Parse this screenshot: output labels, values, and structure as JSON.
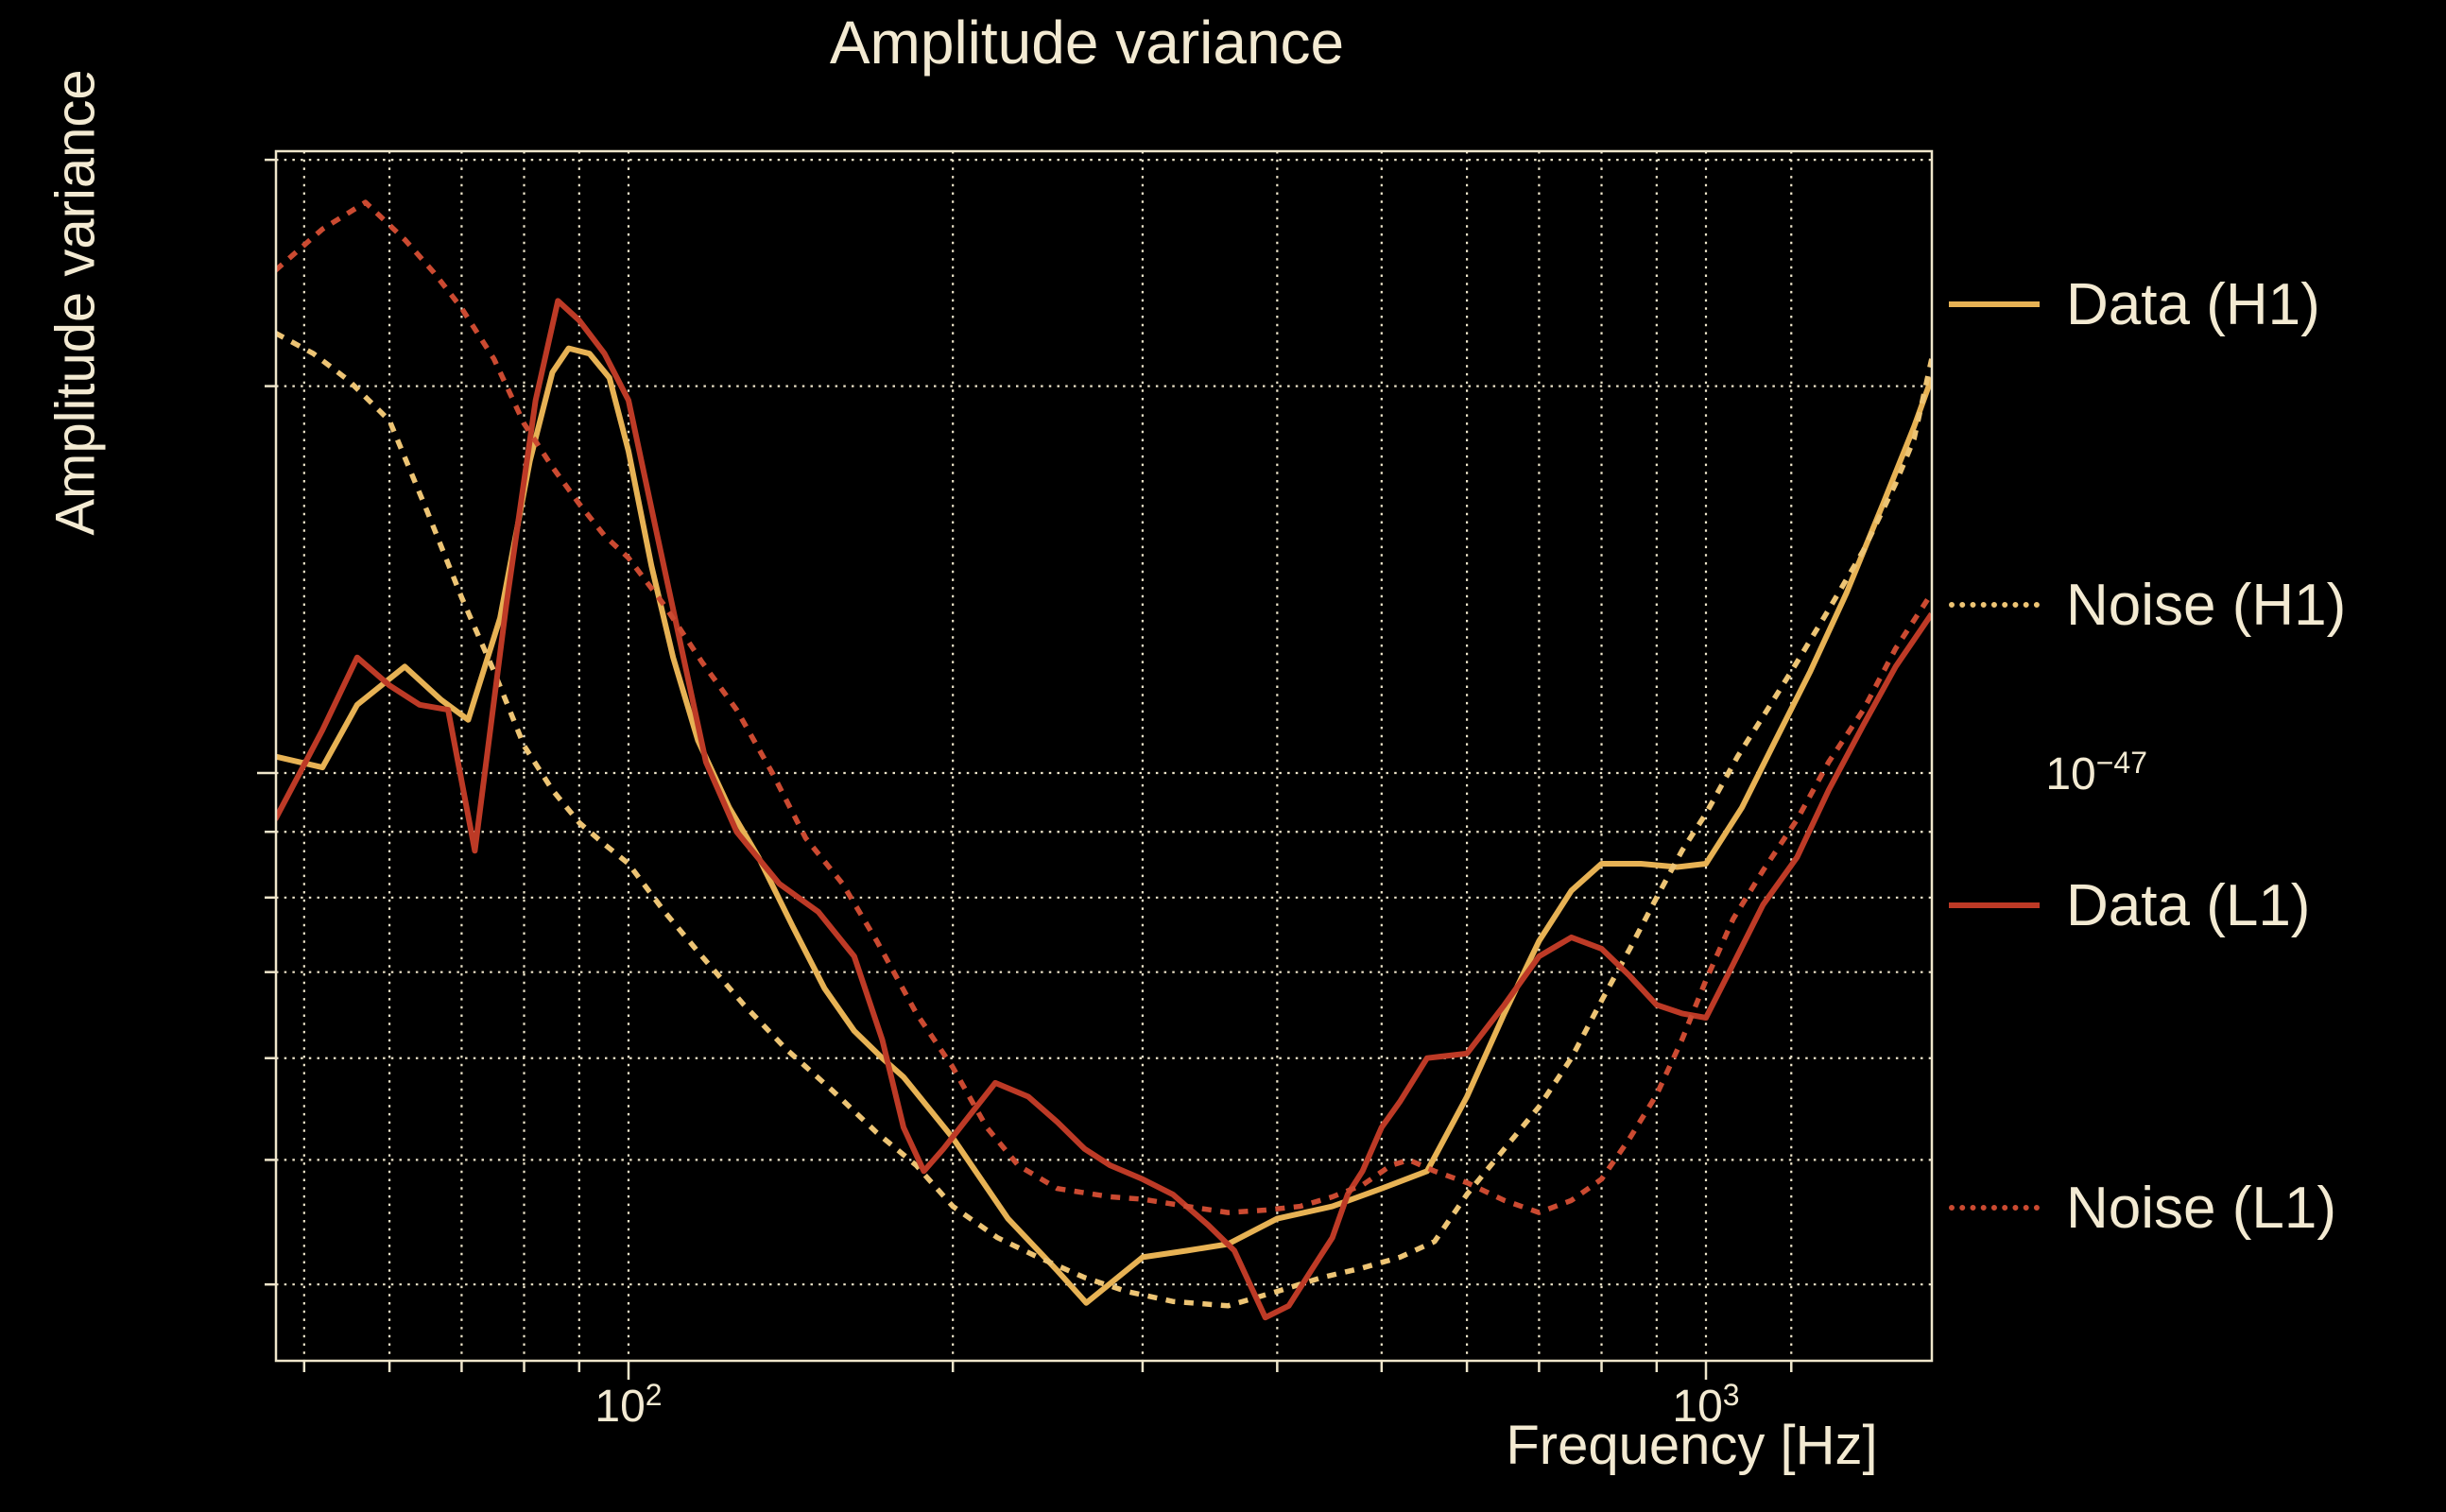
{
  "title": "Amplitude variance",
  "axes": {
    "xlabel": "Frequency [Hz]",
    "ylabel": "Amplitude variance",
    "x_ticks": [
      {
        "base": "10",
        "exp": "2"
      },
      {
        "base": "10",
        "exp": "3"
      }
    ],
    "y_ticks": [
      {
        "base": "10",
        "exp": "−47"
      }
    ]
  },
  "colors": {
    "background": "#000000",
    "text": "#F3EAD2",
    "grid": "#EFE6CB",
    "data_h1": "#E7B254",
    "noise_h1": "#EDC474",
    "data_l1": "#BD3A26",
    "noise_l1": "#CB4A31"
  },
  "legend": [
    {
      "label": "Data (H1)",
      "style": "solid",
      "color": "#E7B254"
    },
    {
      "label": "Noise (H1)",
      "style": "dotted",
      "color": "#EDC474"
    },
    {
      "label": "Data (L1)",
      "style": "solid",
      "color": "#BD3A26"
    },
    {
      "label": "Noise (L1)",
      "style": "dotted",
      "color": "#CB4A31"
    }
  ],
  "chart_data": {
    "type": "line",
    "title": "Amplitude variance",
    "xlabel": "Frequency [Hz]",
    "ylabel": "Amplitude variance",
    "x_scale": "log",
    "y_scale": "log",
    "xlim": [
      47,
      1620
    ],
    "ylim": [
      3.5e-48,
      3.1e-47
    ],
    "grid": "dotted gridlines on both axes, major and minor",
    "legend_position": "outside right",
    "x_gridlines_hz": [
      50,
      60,
      70,
      80,
      90,
      100,
      200,
      300,
      400,
      500,
      600,
      700,
      800,
      900,
      1000,
      1200
    ],
    "x_major_ticks_hz": [
      100,
      1000
    ],
    "y_gridlines": [
      3e-47,
      2e-47,
      1e-47,
      9e-48,
      8e-48,
      7e-48,
      6e-48,
      5e-48,
      4e-48
    ],
    "y_major_ticks": [
      1e-47
    ],
    "series": [
      {
        "name": "Data (H1)",
        "style": "solid",
        "color": "#E7B254",
        "points": [
          [
            47,
            1.03e-47
          ],
          [
            52,
            1.01e-47
          ],
          [
            56,
            1.13e-47
          ],
          [
            62,
            1.21e-47
          ],
          [
            67,
            1.14e-47
          ],
          [
            71,
            1.1e-47
          ],
          [
            76,
            1.32e-47
          ],
          [
            81,
            1.75e-47
          ],
          [
            85,
            2.05e-47
          ],
          [
            88,
            2.14e-47
          ],
          [
            92,
            2.12e-47
          ],
          [
            96,
            2.03e-47
          ],
          [
            100,
            1.78e-47
          ],
          [
            105,
            1.45e-47
          ],
          [
            110,
            1.23e-47
          ],
          [
            116,
            1.06e-47
          ],
          [
            124,
            9.4e-48
          ],
          [
            132,
            8.6e-48
          ],
          [
            142,
            7.6e-48
          ],
          [
            152,
            6.8e-48
          ],
          [
            162,
            6.3e-48
          ],
          [
            172,
            6e-48
          ],
          [
            180,
            5.8e-48
          ],
          [
            200,
            5.2e-48
          ],
          [
            225,
            4.5e-48
          ],
          [
            250,
            4.1e-48
          ],
          [
            266,
            3.87e-48
          ],
          [
            300,
            4.2e-48
          ],
          [
            330,
            4.25e-48
          ],
          [
            360,
            4.3e-48
          ],
          [
            400,
            4.5e-48
          ],
          [
            450,
            4.6e-48
          ],
          [
            500,
            4.75e-48
          ],
          [
            551,
            4.9e-48
          ],
          [
            600,
            5.6e-48
          ],
          [
            650,
            6.5e-48
          ],
          [
            700,
            7.4e-48
          ],
          [
            750,
            8.1e-48
          ],
          [
            800,
            8.5e-48
          ],
          [
            870,
            8.5e-48
          ],
          [
            940,
            8.45e-48
          ],
          [
            1000,
            8.5e-48
          ],
          [
            1080,
            9.4e-48
          ],
          [
            1160,
            1.06e-47
          ],
          [
            1250,
            1.2e-47
          ],
          [
            1350,
            1.38e-47
          ],
          [
            1460,
            1.62e-47
          ],
          [
            1560,
            1.86e-47
          ],
          [
            1620,
            2.03e-47
          ]
        ]
      },
      {
        "name": "Noise (H1)",
        "style": "dotted",
        "color": "#EDC474",
        "points": [
          [
            47,
            2.2e-47
          ],
          [
            51,
            2.12e-47
          ],
          [
            55,
            2.02e-47
          ],
          [
            60,
            1.88e-47
          ],
          [
            65,
            1.6e-47
          ],
          [
            70,
            1.37e-47
          ],
          [
            75,
            1.2e-47
          ],
          [
            80,
            1.05e-47
          ],
          [
            85,
            9.7e-48
          ],
          [
            90,
            9.15e-48
          ],
          [
            95,
            8.8e-48
          ],
          [
            100,
            8.5e-48
          ],
          [
            108,
            7.8e-48
          ],
          [
            117,
            7.2e-48
          ],
          [
            128,
            6.6e-48
          ],
          [
            140,
            6.1e-48
          ],
          [
            155,
            5.65e-48
          ],
          [
            170,
            5.25e-48
          ],
          [
            185,
            4.95e-48
          ],
          [
            200,
            4.6e-48
          ],
          [
            220,
            4.35e-48
          ],
          [
            240,
            4.2e-48
          ],
          [
            265,
            4.05e-48
          ],
          [
            290,
            3.95e-48
          ],
          [
            320,
            3.88e-48
          ],
          [
            360,
            3.85e-48
          ],
          [
            400,
            3.95e-48
          ],
          [
            440,
            4.05e-48
          ],
          [
            480,
            4.12e-48
          ],
          [
            520,
            4.2e-48
          ],
          [
            560,
            4.32e-48
          ],
          [
            600,
            4.7e-48
          ],
          [
            650,
            5.1e-48
          ],
          [
            700,
            5.5e-48
          ],
          [
            750,
            6e-48
          ],
          [
            800,
            6.65e-48
          ],
          [
            850,
            7.3e-48
          ],
          [
            900,
            8e-48
          ],
          [
            950,
            8.7e-48
          ],
          [
            1000,
            9.3e-48
          ],
          [
            1070,
            1.03e-47
          ],
          [
            1140,
            1.12e-47
          ],
          [
            1215,
            1.22e-47
          ],
          [
            1300,
            1.34e-47
          ],
          [
            1400,
            1.49e-47
          ],
          [
            1500,
            1.68e-47
          ],
          [
            1560,
            1.82e-47
          ],
          [
            1620,
            2.1e-47
          ]
        ]
      },
      {
        "name": "Data (L1)",
        "style": "solid",
        "color": "#BD3A26",
        "points": [
          [
            47,
            9.2e-48
          ],
          [
            52,
            1.08e-47
          ],
          [
            56,
            1.23e-47
          ],
          [
            60,
            1.17e-47
          ],
          [
            64,
            1.13e-47
          ],
          [
            68,
            1.12e-47
          ],
          [
            72,
            8.7e-48
          ],
          [
            77,
            1.35e-47
          ],
          [
            82,
            1.95e-47
          ],
          [
            86,
            2.33e-47
          ],
          [
            90,
            2.25e-47
          ],
          [
            95,
            2.12e-47
          ],
          [
            100,
            1.95e-47
          ],
          [
            106,
            1.55e-47
          ],
          [
            112,
            1.25e-47
          ],
          [
            118,
            1.02e-47
          ],
          [
            126,
            9e-48
          ],
          [
            138,
            8.2e-48
          ],
          [
            150,
            7.8e-48
          ],
          [
            162,
            7.2e-48
          ],
          [
            172,
            6.2e-48
          ],
          [
            180,
            5.3e-48
          ],
          [
            188,
            4.9e-48
          ],
          [
            196,
            5.1e-48
          ],
          [
            205,
            5.35e-48
          ],
          [
            219,
            5.74e-48
          ],
          [
            235,
            5.6e-48
          ],
          [
            250,
            5.35e-48
          ],
          [
            265,
            5.1e-48
          ],
          [
            280,
            4.95e-48
          ],
          [
            300,
            4.83e-48
          ],
          [
            320,
            4.7e-48
          ],
          [
            345,
            4.45e-48
          ],
          [
            365,
            4.25e-48
          ],
          [
            390,
            3.77e-48
          ],
          [
            410,
            3.85e-48
          ],
          [
            430,
            4.1e-48
          ],
          [
            450,
            4.35e-48
          ],
          [
            465,
            4.7e-48
          ],
          [
            480,
            4.9e-48
          ],
          [
            500,
            5.3e-48
          ],
          [
            520,
            5.55e-48
          ],
          [
            551,
            6e-48
          ],
          [
            600,
            6.05e-48
          ],
          [
            650,
            6.6e-48
          ],
          [
            700,
            7.2e-48
          ],
          [
            750,
            7.45e-48
          ],
          [
            800,
            7.3e-48
          ],
          [
            850,
            6.95e-48
          ],
          [
            900,
            6.6e-48
          ],
          [
            950,
            6.5e-48
          ],
          [
            1000,
            6.45e-48
          ],
          [
            1060,
            7.1e-48
          ],
          [
            1130,
            7.9e-48
          ],
          [
            1215,
            8.6e-48
          ],
          [
            1300,
            9.7e-48
          ],
          [
            1400,
            1.09e-47
          ],
          [
            1500,
            1.21e-47
          ],
          [
            1620,
            1.33e-47
          ]
        ]
      },
      {
        "name": "Noise (L1)",
        "style": "dotted",
        "color": "#CB4A31",
        "points": [
          [
            47,
            2.46e-47
          ],
          [
            52,
            2.65e-47
          ],
          [
            57,
            2.78e-47
          ],
          [
            62,
            2.6e-47
          ],
          [
            66,
            2.45e-47
          ],
          [
            70,
            2.3e-47
          ],
          [
            75,
            2.1e-47
          ],
          [
            80,
            1.87e-47
          ],
          [
            85,
            1.73e-47
          ],
          [
            90,
            1.62e-47
          ],
          [
            95,
            1.53e-47
          ],
          [
            100,
            1.47e-47
          ],
          [
            108,
            1.35e-47
          ],
          [
            117,
            1.22e-47
          ],
          [
            126,
            1.12e-47
          ],
          [
            136,
            1e-47
          ],
          [
            146,
            8.9e-48
          ],
          [
            158,
            8.2e-48
          ],
          [
            170,
            7.4e-48
          ],
          [
            185,
            6.5e-48
          ],
          [
            200,
            5.9e-48
          ],
          [
            215,
            5.3e-48
          ],
          [
            230,
            4.95e-48
          ],
          [
            250,
            4.75e-48
          ],
          [
            280,
            4.68e-48
          ],
          [
            300,
            4.66e-48
          ],
          [
            330,
            4.6e-48
          ],
          [
            360,
            4.55e-48
          ],
          [
            390,
            4.57e-48
          ],
          [
            420,
            4.6e-48
          ],
          [
            450,
            4.68e-48
          ],
          [
            480,
            4.78e-48
          ],
          [
            510,
            4.95e-48
          ],
          [
            530,
            5e-48
          ],
          [
            560,
            4.9e-48
          ],
          [
            600,
            4.8e-48
          ],
          [
            650,
            4.65e-48
          ],
          [
            700,
            4.55e-48
          ],
          [
            750,
            4.65e-48
          ],
          [
            800,
            4.83e-48
          ],
          [
            850,
            5.2e-48
          ],
          [
            900,
            5.62e-48
          ],
          [
            950,
            6.2e-48
          ],
          [
            1000,
            6.9e-48
          ],
          [
            1060,
            7.7e-48
          ],
          [
            1130,
            8.4e-48
          ],
          [
            1215,
            9.2e-48
          ],
          [
            1300,
            1.02e-47
          ],
          [
            1400,
            1.12e-47
          ],
          [
            1500,
            1.25e-47
          ],
          [
            1620,
            1.38e-47
          ]
        ]
      }
    ]
  }
}
